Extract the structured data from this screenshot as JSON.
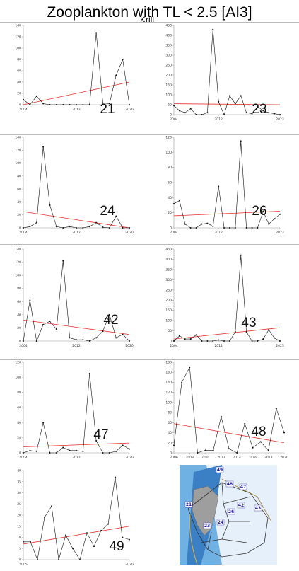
{
  "page": {
    "title": "Zooplankton with TL < 2.5 [AI3]",
    "subtitle": "Krill"
  },
  "chart_data": [
    {
      "type": "line",
      "label": "21",
      "xmin": 2004,
      "xmax": 2020,
      "xticks": [
        2004,
        2012,
        2020
      ],
      "ymin": 0,
      "ymax": 140,
      "yticks": [
        0,
        20,
        40,
        60,
        80,
        100,
        120,
        140
      ],
      "x": [
        2004,
        2005,
        2006,
        2007,
        2008,
        2009,
        2010,
        2011,
        2012,
        2013,
        2014,
        2015,
        2016,
        2017,
        2018,
        2019,
        2020
      ],
      "values": [
        9,
        0,
        15,
        2,
        0,
        0,
        0,
        0,
        0,
        0,
        0,
        127,
        3,
        2,
        52,
        80,
        0
      ],
      "trend": [
        0,
        40
      ]
    },
    {
      "type": "line",
      "label": "23",
      "xmin": 2004,
      "xmax": 2023,
      "xticks": [
        2004,
        2012,
        2023
      ],
      "ymin": 0,
      "ymax": 450,
      "yticks": [
        0,
        50,
        100,
        150,
        200,
        250,
        300,
        350,
        400,
        450
      ],
      "x": [
        2004,
        2005,
        2006,
        2007,
        2008,
        2009,
        2010,
        2011,
        2012,
        2013,
        2014,
        2015,
        2016,
        2017,
        2018,
        2019,
        2020,
        2021,
        2022,
        2023
      ],
      "values": [
        45,
        20,
        10,
        30,
        0,
        0,
        10,
        430,
        65,
        0,
        95,
        55,
        95,
        10,
        5,
        40,
        20,
        10,
        5,
        0
      ],
      "trend": [
        55,
        50
      ]
    },
    {
      "type": "line",
      "label": "24",
      "xmin": 2004,
      "xmax": 2020,
      "xticks": [
        2004,
        2012,
        2020
      ],
      "ymin": 0,
      "ymax": 140,
      "yticks": [
        0,
        20,
        40,
        60,
        80,
        100,
        120,
        140
      ],
      "x": [
        2004,
        2005,
        2006,
        2007,
        2008,
        2009,
        2010,
        2011,
        2012,
        2013,
        2014,
        2015,
        2016,
        2017,
        2018,
        2019,
        2020
      ],
      "values": [
        0,
        2,
        8,
        125,
        35,
        2,
        0,
        2,
        0,
        0,
        2,
        8,
        1,
        0,
        18,
        0,
        0
      ],
      "trend": [
        25,
        0
      ]
    },
    {
      "type": "line",
      "label": "26",
      "xmin": 2004,
      "xmax": 2023,
      "xticks": [
        2004,
        2012,
        2023
      ],
      "ymin": 0,
      "ymax": 120,
      "yticks": [
        0,
        20,
        40,
        60,
        80,
        100,
        120
      ],
      "x": [
        2004,
        2005,
        2006,
        2007,
        2008,
        2009,
        2010,
        2011,
        2012,
        2013,
        2014,
        2015,
        2016,
        2017,
        2018,
        2019,
        2020,
        2021,
        2022,
        2023
      ],
      "values": [
        32,
        36,
        5,
        0,
        0,
        5,
        6,
        2,
        55,
        0,
        0,
        0,
        115,
        0,
        0,
        0,
        22,
        5,
        12,
        18
      ],
      "trend": [
        16,
        22
      ]
    },
    {
      "type": "line",
      "label": "42",
      "xmin": 2004,
      "xmax": 2020,
      "xticks": [
        2004,
        2012,
        2020
      ],
      "ymin": 0,
      "ymax": 140,
      "yticks": [
        0,
        20,
        40,
        60,
        80,
        100,
        120,
        140
      ],
      "x": [
        2004,
        2005,
        2006,
        2007,
        2008,
        2009,
        2010,
        2011,
        2012,
        2013,
        2014,
        2015,
        2016,
        2017,
        2018,
        2019,
        2020
      ],
      "values": [
        0,
        62,
        0,
        25,
        30,
        18,
        122,
        5,
        2,
        2,
        0,
        5,
        15,
        40,
        5,
        10,
        0
      ],
      "trend": [
        32,
        10
      ]
    },
    {
      "type": "line",
      "label": "43",
      "xmin": 2004,
      "xmax": 2023,
      "xticks": [
        2004,
        2012,
        2023
      ],
      "ymin": 0,
      "ymax": 450,
      "yticks": [
        0,
        50,
        100,
        150,
        200,
        250,
        300,
        350,
        400,
        450
      ],
      "x": [
        2004,
        2005,
        2006,
        2007,
        2008,
        2009,
        2010,
        2011,
        2012,
        2013,
        2014,
        2015,
        2016,
        2017,
        2018,
        2019,
        2020,
        2021,
        2022,
        2023
      ],
      "values": [
        0,
        25,
        10,
        10,
        30,
        0,
        0,
        0,
        5,
        0,
        0,
        45,
        420,
        45,
        0,
        0,
        10,
        55,
        15,
        0
      ],
      "trend": [
        10,
        65
      ]
    },
    {
      "type": "line",
      "label": "47",
      "xmin": 2004,
      "xmax": 2020,
      "xticks": [
        2004,
        2012,
        2020
      ],
      "ymin": 0,
      "ymax": 120,
      "yticks": [
        0,
        20,
        40,
        60,
        80,
        100,
        120
      ],
      "x": [
        2004,
        2005,
        2006,
        2007,
        2008,
        2009,
        2010,
        2011,
        2012,
        2013,
        2014,
        2015,
        2016,
        2017,
        2018,
        2019,
        2020
      ],
      "values": [
        0,
        3,
        2,
        40,
        0,
        0,
        7,
        3,
        3,
        2,
        105,
        16,
        0,
        0,
        2,
        10,
        5
      ],
      "trend": [
        8,
        13
      ]
    },
    {
      "type": "line",
      "label": "48",
      "xmin": 2006,
      "xmax": 2020,
      "xticks": [
        2006,
        2008,
        2010,
        2012,
        2014,
        2016,
        2018,
        2020
      ],
      "ymin": 0,
      "ymax": 180,
      "yticks": [
        0,
        20,
        40,
        60,
        80,
        100,
        120,
        140,
        160,
        180
      ],
      "x": [
        2006,
        2007,
        2008,
        2009,
        2010,
        2011,
        2012,
        2013,
        2014,
        2015,
        2016,
        2017,
        2018,
        2019,
        2020
      ],
      "values": [
        15,
        140,
        170,
        0,
        5,
        5,
        72,
        8,
        0,
        58,
        10,
        22,
        5,
        88,
        40
      ],
      "trend": [
        58,
        20
      ]
    },
    {
      "type": "line",
      "label": "49",
      "xmin": 2005,
      "xmax": 2020,
      "xticks": [
        2005,
        2020
      ],
      "ymin": 0,
      "ymax": 40,
      "yticks": [
        0,
        5,
        10,
        15,
        20,
        25,
        30,
        35,
        40
      ],
      "x": [
        2005,
        2006,
        2007,
        2008,
        2009,
        2010,
        2011,
        2012,
        2013,
        2014,
        2015,
        2016,
        2017,
        2018,
        2019,
        2020
      ],
      "values": [
        8,
        8,
        0,
        19,
        24,
        0,
        11,
        5,
        0,
        12,
        6,
        13,
        16,
        37,
        10,
        9
      ],
      "trend": [
        7,
        15
      ]
    }
  ],
  "map": {
    "regions": [
      "49",
      "48",
      "47",
      "21",
      "42",
      "43",
      "26",
      "24",
      "23"
    ]
  }
}
